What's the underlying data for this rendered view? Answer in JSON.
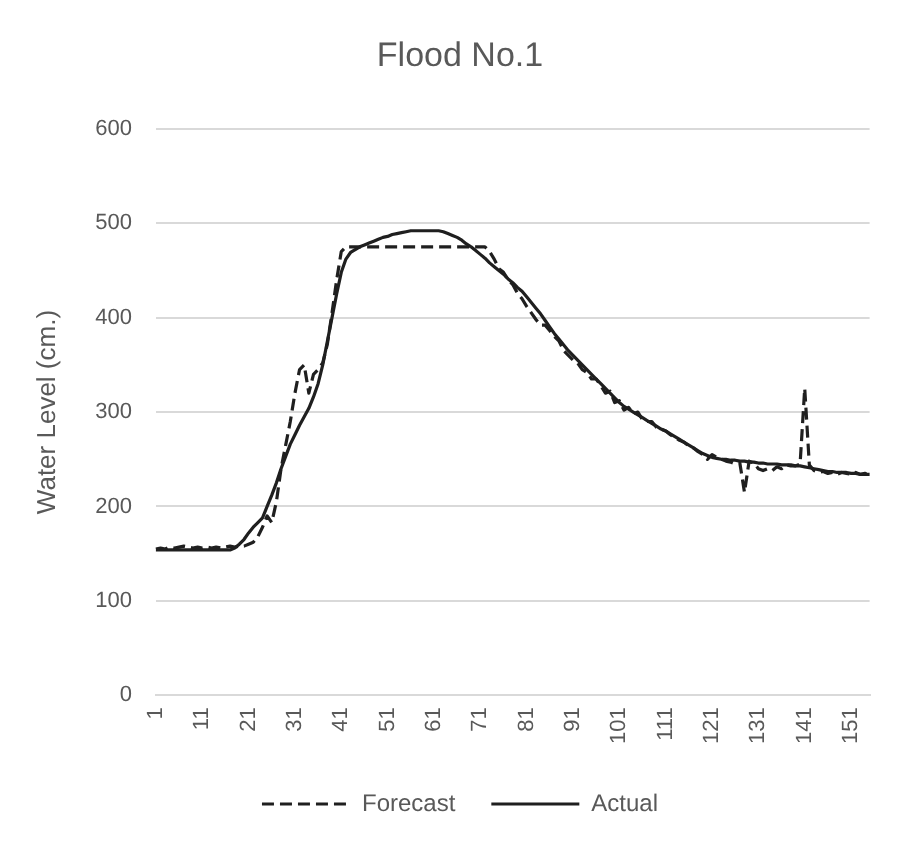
{
  "chart_data": {
    "type": "line",
    "title": "Flood No.1",
    "ylabel": "Water Level (cm.)",
    "categories": [
      "1",
      null,
      null,
      null,
      null,
      null,
      null,
      null,
      null,
      null,
      "11",
      null,
      null,
      null,
      null,
      null,
      null,
      null,
      null,
      null,
      "21",
      null,
      null,
      null,
      null,
      null,
      null,
      null,
      null,
      null,
      "31",
      null,
      null,
      null,
      null,
      null,
      null,
      null,
      null,
      null,
      "41",
      null,
      null,
      null,
      null,
      null,
      null,
      null,
      null,
      null,
      "51",
      null,
      null,
      null,
      null,
      null,
      null,
      null,
      null,
      null,
      "61",
      null,
      null,
      null,
      null,
      null,
      null,
      null,
      null,
      null,
      "71",
      null,
      null,
      null,
      null,
      null,
      null,
      null,
      null,
      null,
      "81",
      null,
      null,
      null,
      null,
      null,
      null,
      null,
      null,
      null,
      "91",
      null,
      null,
      null,
      null,
      null,
      null,
      null,
      null,
      null,
      "101",
      null,
      null,
      null,
      null,
      null,
      null,
      null,
      null,
      null,
      "111",
      null,
      null,
      null,
      null,
      null,
      null,
      null,
      null,
      null,
      "121",
      null,
      null,
      null,
      null,
      null,
      null,
      null,
      null,
      null,
      "131",
      null,
      null,
      null,
      null,
      null,
      null,
      null,
      null,
      null,
      "141",
      null,
      null,
      null,
      null,
      null,
      null,
      null,
      null,
      null,
      "151",
      null,
      null,
      null,
      null
    ],
    "series": [
      {
        "name": "Forecast",
        "color": "#1f1f1f",
        "line_style": "dashed",
        "values": [
          155,
          156,
          155,
          157,
          156,
          157,
          158,
          157,
          156,
          157,
          156,
          157,
          156,
          157,
          156,
          157,
          158,
          157,
          158,
          158,
          160,
          162,
          168,
          178,
          190,
          183,
          205,
          240,
          265,
          290,
          320,
          345,
          350,
          320,
          340,
          345,
          352,
          372,
          405,
          440,
          470,
          475,
          475,
          475,
          475,
          475,
          475,
          475,
          475,
          475,
          475,
          475,
          475,
          475,
          475,
          475,
          475,
          475,
          475,
          475,
          475,
          475,
          475,
          475,
          475,
          475,
          475,
          475,
          475,
          475,
          475,
          475,
          470,
          462,
          452,
          448,
          440,
          435,
          426,
          420,
          412,
          405,
          398,
          392,
          392,
          386,
          380,
          375,
          365,
          360,
          355,
          352,
          345,
          342,
          335,
          335,
          328,
          320,
          322,
          310,
          312,
          302,
          305,
          298,
          300,
          292,
          290,
          290,
          284,
          282,
          280,
          276,
          273,
          270,
          268,
          264,
          262,
          258,
          255,
          250,
          255,
          252,
          250,
          248,
          247,
          245,
          246,
          215,
          248,
          246,
          240,
          238,
          240,
          238,
          242,
          240,
          244,
          243,
          243,
          245,
          325,
          244,
          238,
          236,
          237,
          235,
          236,
          234,
          236,
          235,
          234,
          236,
          234,
          235,
          234
        ]
      },
      {
        "name": "Actual",
        "color": "#1f1f1f",
        "line_style": "solid",
        "values": [
          154,
          154,
          154,
          154,
          154,
          154,
          154,
          154,
          154,
          154,
          154,
          154,
          154,
          154,
          154,
          154,
          154,
          156,
          160,
          165,
          172,
          178,
          183,
          188,
          200,
          212,
          225,
          240,
          253,
          266,
          276,
          286,
          295,
          304,
          316,
          330,
          350,
          375,
          400,
          425,
          448,
          462,
          469,
          472,
          475,
          477,
          479,
          481,
          483,
          485,
          486,
          488,
          489,
          490,
          491,
          492,
          492,
          492,
          492,
          492,
          492,
          492,
          491,
          489,
          487,
          485,
          482,
          478,
          475,
          471,
          467,
          463,
          458,
          454,
          450,
          446,
          441,
          437,
          432,
          428,
          422,
          416,
          410,
          404,
          397,
          390,
          383,
          377,
          371,
          365,
          360,
          355,
          350,
          345,
          340,
          335,
          330,
          325,
          320,
          315,
          310,
          306,
          303,
          300,
          297,
          294,
          291,
          288,
          285,
          282,
          280,
          277,
          274,
          271,
          268,
          265,
          262,
          259,
          256,
          254,
          252,
          251,
          250,
          250,
          249,
          249,
          248,
          248,
          247,
          247,
          246,
          246,
          245,
          245,
          245,
          244,
          244,
          244,
          243,
          243,
          242,
          241,
          240,
          239,
          238,
          237,
          237,
          236,
          236,
          236,
          235,
          235,
          234,
          234,
          234
        ]
      }
    ],
    "ylim": [
      0,
      600
    ],
    "yticks": [
      0,
      100,
      200,
      300,
      400,
      500,
      600
    ],
    "grid": "y",
    "legend": "bottom",
    "marker": "none"
  }
}
